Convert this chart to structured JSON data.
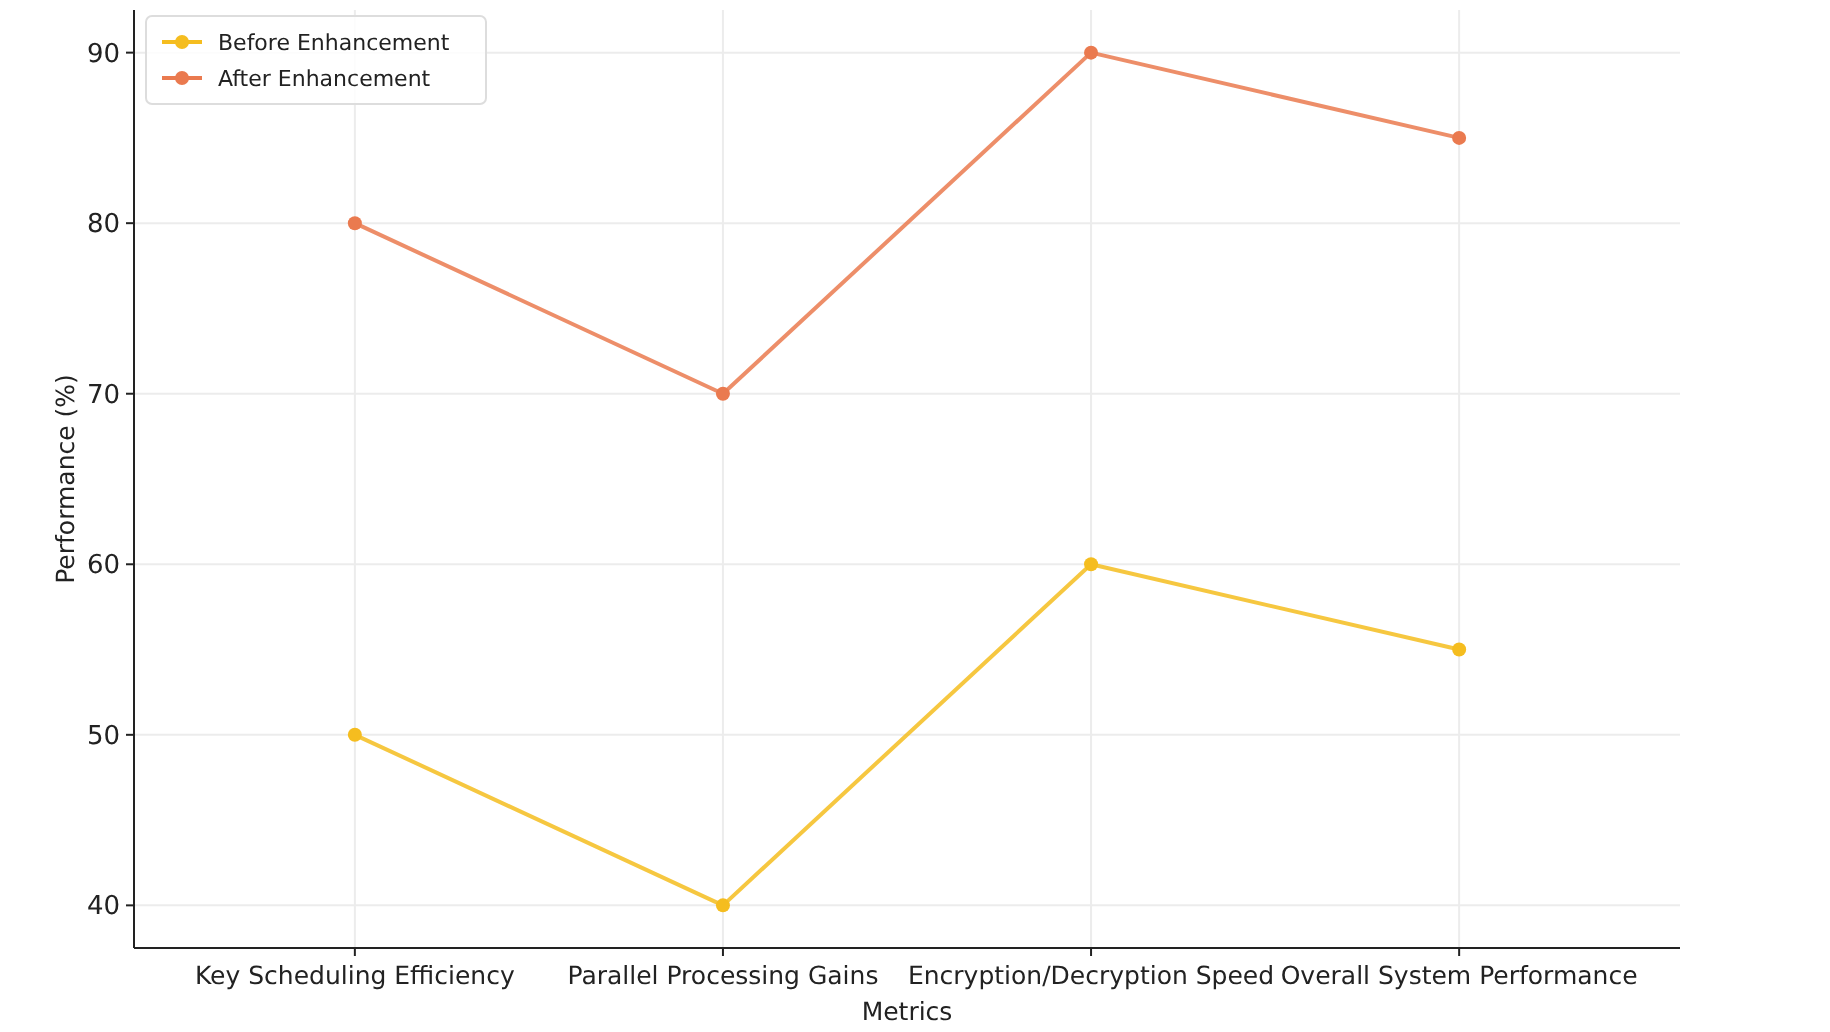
{
  "chart_data": {
    "type": "line",
    "xlabel": "Metrics",
    "ylabel": "Performance (%)",
    "categories": [
      "Key Scheduling Efficiency",
      "Parallel Processing Gains",
      "Encryption/Decryption Speed",
      "Overall System Performance"
    ],
    "series": [
      {
        "name": "Before Enhancement",
        "color": "#f5bd1f",
        "values": [
          50,
          40,
          60,
          55
        ]
      },
      {
        "name": "After Enhancement",
        "color": "#ea7a4f",
        "values": [
          80,
          70,
          90,
          85
        ]
      }
    ],
    "ylim": [
      37.5,
      92.5
    ],
    "yticks": [
      40,
      50,
      60,
      70,
      80,
      90
    ],
    "grid": true,
    "legend": "top left",
    "marker": "circle",
    "line_style": "solid"
  }
}
